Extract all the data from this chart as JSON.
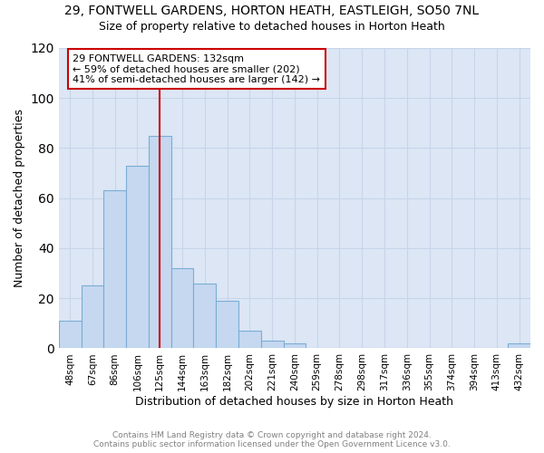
{
  "title_line1": "29, FONTWELL GARDENS, HORTON HEATH, EASTLEIGH, SO50 7NL",
  "title_line2": "Size of property relative to detached houses in Horton Heath",
  "xlabel": "Distribution of detached houses by size in Horton Heath",
  "ylabel": "Number of detached properties",
  "footnote1": "Contains HM Land Registry data © Crown copyright and database right 2024.",
  "footnote2": "Contains public sector information licensed under the Open Government Licence v3.0.",
  "bar_labels": [
    "48sqm",
    "67sqm",
    "86sqm",
    "106sqm",
    "125sqm",
    "144sqm",
    "163sqm",
    "182sqm",
    "202sqm",
    "221sqm",
    "240sqm",
    "259sqm",
    "278sqm",
    "298sqm",
    "317sqm",
    "336sqm",
    "355sqm",
    "374sqm",
    "394sqm",
    "413sqm",
    "432sqm"
  ],
  "bar_values": [
    11,
    25,
    63,
    73,
    85,
    32,
    26,
    19,
    7,
    3,
    2,
    0,
    0,
    0,
    0,
    0,
    0,
    0,
    0,
    0,
    2
  ],
  "bar_color": "#c5d8f0",
  "bar_edge_color": "#7badd4",
  "grid_color": "#c8d4e8",
  "background_color": "#dce6f5",
  "annotation_line1": "29 FONTWELL GARDENS: 132sqm",
  "annotation_line2": "← 59% of detached houses are smaller (202)",
  "annotation_line3": "41% of semi-detached houses are larger (142) →",
  "annotation_box_color": "white",
  "annotation_box_edge_color": "#cc0000",
  "property_line_x": 4.0,
  "property_line_color": "#cc0000",
  "ylim": [
    0,
    120
  ],
  "yticks": [
    0,
    20,
    40,
    60,
    80,
    100,
    120
  ]
}
